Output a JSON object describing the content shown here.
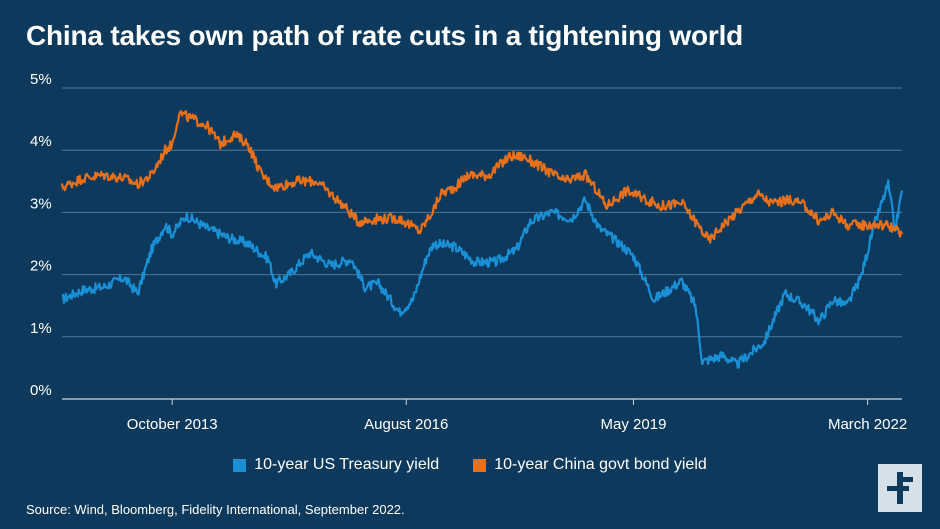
{
  "title": "China takes own path of rate cuts in a tightening world",
  "source": "Source: Wind, Bloomberg, Fidelity International, September 2022.",
  "logo_icon": "fidelity-f-logo",
  "chart_data": {
    "type": "line",
    "title": "China takes own path of rate cuts in a tightening world",
    "xlabel": "",
    "ylabel": "",
    "x_range": [
      "2012-06",
      "2022-08"
    ],
    "ylim": [
      0,
      5
    ],
    "y_ticks": [
      0,
      1,
      2,
      3,
      4,
      5
    ],
    "y_tick_labels": [
      "0%",
      "1%",
      "2%",
      "3%",
      "4%",
      "5%"
    ],
    "x_ticks": [
      "2013-10",
      "2016-08",
      "2019-05",
      "2022-03"
    ],
    "x_tick_labels": [
      "October 2013",
      "August 2016",
      "May 2019",
      "March 2022"
    ],
    "grid": "horizontal",
    "legend_position": "bottom",
    "series": [
      {
        "name": "10-year US Treasury yield",
        "color": "#1a8fd6",
        "points": [
          [
            "2012-06",
            1.6
          ],
          [
            "2012-09",
            1.75
          ],
          [
            "2012-12",
            1.8
          ],
          [
            "2013-03",
            1.95
          ],
          [
            "2013-05",
            1.7
          ],
          [
            "2013-07",
            2.4
          ],
          [
            "2013-09",
            2.8
          ],
          [
            "2013-10",
            2.65
          ],
          [
            "2013-12",
            2.95
          ],
          [
            "2014-03",
            2.75
          ],
          [
            "2014-06",
            2.6
          ],
          [
            "2014-09",
            2.5
          ],
          [
            "2014-12",
            2.25
          ],
          [
            "2015-01",
            1.85
          ],
          [
            "2015-03",
            2.0
          ],
          [
            "2015-06",
            2.35
          ],
          [
            "2015-09",
            2.15
          ],
          [
            "2015-12",
            2.25
          ],
          [
            "2016-02",
            1.8
          ],
          [
            "2016-04",
            1.85
          ],
          [
            "2016-07",
            1.4
          ],
          [
            "2016-09",
            1.6
          ],
          [
            "2016-11",
            2.3
          ],
          [
            "2016-12",
            2.5
          ],
          [
            "2017-03",
            2.45
          ],
          [
            "2017-06",
            2.2
          ],
          [
            "2017-09",
            2.2
          ],
          [
            "2017-12",
            2.4
          ],
          [
            "2018-02",
            2.85
          ],
          [
            "2018-05",
            3.0
          ],
          [
            "2018-08",
            2.9
          ],
          [
            "2018-10",
            3.2
          ],
          [
            "2018-12",
            2.75
          ],
          [
            "2019-03",
            2.5
          ],
          [
            "2019-05",
            2.3
          ],
          [
            "2019-08",
            1.6
          ],
          [
            "2019-10",
            1.75
          ],
          [
            "2019-12",
            1.9
          ],
          [
            "2020-02",
            1.5
          ],
          [
            "2020-03",
            0.6
          ],
          [
            "2020-06",
            0.7
          ],
          [
            "2020-08",
            0.55
          ],
          [
            "2020-12",
            0.92
          ],
          [
            "2021-03",
            1.7
          ],
          [
            "2021-06",
            1.5
          ],
          [
            "2021-08",
            1.25
          ],
          [
            "2021-10",
            1.6
          ],
          [
            "2021-12",
            1.5
          ],
          [
            "2022-02",
            1.95
          ],
          [
            "2022-04",
            2.8
          ],
          [
            "2022-06",
            3.45
          ],
          [
            "2022-07",
            2.7
          ],
          [
            "2022-08",
            3.35
          ]
        ]
      },
      {
        "name": "10-year China govt bond yield",
        "color": "#e8701a",
        "points": [
          [
            "2012-06",
            3.4
          ],
          [
            "2012-09",
            3.55
          ],
          [
            "2012-12",
            3.6
          ],
          [
            "2013-03",
            3.55
          ],
          [
            "2013-05",
            3.45
          ],
          [
            "2013-07",
            3.6
          ],
          [
            "2013-09",
            4.0
          ],
          [
            "2013-10",
            4.1
          ],
          [
            "2013-11",
            4.6
          ],
          [
            "2014-01",
            4.5
          ],
          [
            "2014-03",
            4.4
          ],
          [
            "2014-05",
            4.1
          ],
          [
            "2014-07",
            4.25
          ],
          [
            "2014-09",
            4.1
          ],
          [
            "2014-11",
            3.6
          ],
          [
            "2015-01",
            3.4
          ],
          [
            "2015-04",
            3.5
          ],
          [
            "2015-07",
            3.5
          ],
          [
            "2015-09",
            3.3
          ],
          [
            "2015-11",
            3.1
          ],
          [
            "2016-01",
            2.85
          ],
          [
            "2016-04",
            2.9
          ],
          [
            "2016-07",
            2.9
          ],
          [
            "2016-10",
            2.7
          ],
          [
            "2016-12",
            3.05
          ],
          [
            "2017-01",
            3.3
          ],
          [
            "2017-03",
            3.4
          ],
          [
            "2017-05",
            3.6
          ],
          [
            "2017-08",
            3.6
          ],
          [
            "2017-11",
            3.9
          ],
          [
            "2018-01",
            3.9
          ],
          [
            "2018-04",
            3.7
          ],
          [
            "2018-07",
            3.5
          ],
          [
            "2018-10",
            3.6
          ],
          [
            "2018-12",
            3.3
          ],
          [
            "2019-01",
            3.1
          ],
          [
            "2019-04",
            3.35
          ],
          [
            "2019-06",
            3.25
          ],
          [
            "2019-09",
            3.1
          ],
          [
            "2019-12",
            3.15
          ],
          [
            "2020-02",
            2.85
          ],
          [
            "2020-04",
            2.55
          ],
          [
            "2020-06",
            2.8
          ],
          [
            "2020-08",
            3.0
          ],
          [
            "2020-11",
            3.3
          ],
          [
            "2021-01",
            3.15
          ],
          [
            "2021-04",
            3.2
          ],
          [
            "2021-06",
            3.1
          ],
          [
            "2021-08",
            2.85
          ],
          [
            "2021-10",
            3.0
          ],
          [
            "2021-12",
            2.8
          ],
          [
            "2022-03",
            2.8
          ],
          [
            "2022-06",
            2.8
          ],
          [
            "2022-08",
            2.65
          ]
        ]
      }
    ]
  }
}
